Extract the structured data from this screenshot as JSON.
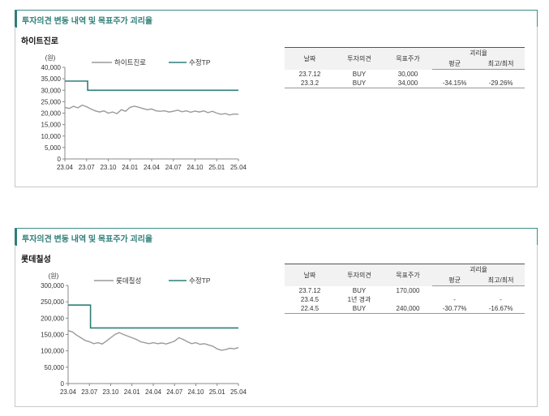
{
  "panels": [
    {
      "title": "투자의견 변동 내역 및 목표주가 괴리율",
      "company": "하이트진로",
      "table": {
        "headers": {
          "date": "날짜",
          "opinion": "투자의견",
          "target": "목표주가",
          "gap": "괴리율",
          "avg": "평균",
          "maxmin": "최고/최저"
        },
        "rows": [
          {
            "date": "23.7.12",
            "opinion": "BUY",
            "target": "30,000",
            "avg": "",
            "maxmin": ""
          },
          {
            "date": "23.3.2",
            "opinion": "BUY",
            "target": "34,000",
            "avg": "-34.15%",
            "maxmin": "-29.26%"
          }
        ]
      }
    },
    {
      "title": "투자의견 변동 내역 및 목표주가 괴리율",
      "company": "롯데칠성",
      "table": {
        "headers": {
          "date": "날짜",
          "opinion": "투자의견",
          "target": "목표주가",
          "gap": "괴리율",
          "avg": "평균",
          "maxmin": "최고/최저"
        },
        "rows": [
          {
            "date": "23.7.12",
            "opinion": "BUY",
            "target": "170,000",
            "avg": "",
            "maxmin": ""
          },
          {
            "date": "23.4.5",
            "opinion": "1년 경과",
            "target": "",
            "avg": "-",
            "maxmin": "-"
          },
          {
            "date": "22.4.5",
            "opinion": "BUY",
            "target": "240,000",
            "avg": "-30.77%",
            "maxmin": "-16.67%"
          }
        ]
      }
    }
  ],
  "chart_data": [
    {
      "type": "line",
      "unit_label": "(원)",
      "x_ticks": [
        "23.04",
        "23.07",
        "23.10",
        "24.01",
        "24.04",
        "24.07",
        "24.10",
        "25.01",
        "25.04"
      ],
      "y_ticks": [
        "0",
        "5,000",
        "10,000",
        "15,000",
        "20,000",
        "25,000",
        "30,000",
        "35,000",
        "40,000"
      ],
      "ylim": [
        0,
        40000
      ],
      "colors": {
        "price": "#9a9a9a",
        "target": "#2e7f78"
      },
      "series": [
        {
          "name": "하이트진로",
          "points": [
            [
              0,
              22500
            ],
            [
              0.2,
              22000
            ],
            [
              0.4,
              23000
            ],
            [
              0.6,
              22300
            ],
            [
              0.8,
              23500
            ],
            [
              1.0,
              22800
            ],
            [
              1.2,
              21800
            ],
            [
              1.4,
              21000
            ],
            [
              1.6,
              20500
            ],
            [
              1.8,
              21000
            ],
            [
              2.0,
              20000
            ],
            [
              2.2,
              20500
            ],
            [
              2.4,
              19800
            ],
            [
              2.6,
              21500
            ],
            [
              2.8,
              20800
            ],
            [
              3.0,
              22500
            ],
            [
              3.2,
              23000
            ],
            [
              3.4,
              22600
            ],
            [
              3.6,
              22000
            ],
            [
              3.8,
              21500
            ],
            [
              4.0,
              21800
            ],
            [
              4.2,
              21000
            ],
            [
              4.4,
              20800
            ],
            [
              4.6,
              21000
            ],
            [
              4.8,
              20500
            ],
            [
              5.0,
              20800
            ],
            [
              5.2,
              21300
            ],
            [
              5.4,
              20600
            ],
            [
              5.6,
              21000
            ],
            [
              5.8,
              20400
            ],
            [
              6.0,
              20900
            ],
            [
              6.2,
              20500
            ],
            [
              6.4,
              21000
            ],
            [
              6.6,
              20200
            ],
            [
              6.8,
              20800
            ],
            [
              7.0,
              20000
            ],
            [
              7.2,
              19500
            ],
            [
              7.4,
              19800
            ],
            [
              7.6,
              19200
            ],
            [
              7.8,
              19600
            ],
            [
              8.0,
              19500
            ]
          ]
        },
        {
          "name": "수정TP",
          "points": [
            [
              0,
              34000
            ],
            [
              1.05,
              34000
            ],
            [
              1.05,
              30000
            ],
            [
              8.0,
              30000
            ]
          ]
        }
      ]
    },
    {
      "type": "line",
      "unit_label": "(원)",
      "x_ticks": [
        "23.04",
        "23.07",
        "23.10",
        "24.01",
        "24.04",
        "24.07",
        "24.10",
        "25.01",
        "25.04"
      ],
      "y_ticks": [
        "0",
        "50,000",
        "100,000",
        "150,000",
        "200,000",
        "250,000",
        "300,000"
      ],
      "ylim": [
        0,
        300000
      ],
      "colors": {
        "price": "#9a9a9a",
        "target": "#2e7f78"
      },
      "series": [
        {
          "name": "롯데칠성",
          "points": [
            [
              0,
              162000
            ],
            [
              0.2,
              158000
            ],
            [
              0.4,
              148000
            ],
            [
              0.6,
              140000
            ],
            [
              0.8,
              132000
            ],
            [
              1.0,
              128000
            ],
            [
              1.2,
              122000
            ],
            [
              1.4,
              125000
            ],
            [
              1.6,
              121000
            ],
            [
              1.8,
              130000
            ],
            [
              2.0,
              140000
            ],
            [
              2.2,
              150000
            ],
            [
              2.4,
              156000
            ],
            [
              2.6,
              150000
            ],
            [
              2.8,
              145000
            ],
            [
              3.0,
              140000
            ],
            [
              3.2,
              135000
            ],
            [
              3.4,
              128000
            ],
            [
              3.6,
              125000
            ],
            [
              3.8,
              122000
            ],
            [
              4.0,
              125000
            ],
            [
              4.2,
              122000
            ],
            [
              4.4,
              124000
            ],
            [
              4.6,
              121000
            ],
            [
              4.8,
              125000
            ],
            [
              5.0,
              130000
            ],
            [
              5.2,
              140000
            ],
            [
              5.4,
              135000
            ],
            [
              5.6,
              128000
            ],
            [
              5.8,
              122000
            ],
            [
              6.0,
              125000
            ],
            [
              6.2,
              120000
            ],
            [
              6.4,
              122000
            ],
            [
              6.6,
              118000
            ],
            [
              6.8,
              114000
            ],
            [
              7.0,
              106000
            ],
            [
              7.2,
              102000
            ],
            [
              7.4,
              104000
            ],
            [
              7.6,
              108000
            ],
            [
              7.8,
              106000
            ],
            [
              8.0,
              110000
            ]
          ]
        },
        {
          "name": "수정TP",
          "points": [
            [
              0,
              240000
            ],
            [
              1.05,
              240000
            ],
            [
              1.05,
              170000
            ],
            [
              8.0,
              170000
            ]
          ]
        }
      ]
    }
  ]
}
